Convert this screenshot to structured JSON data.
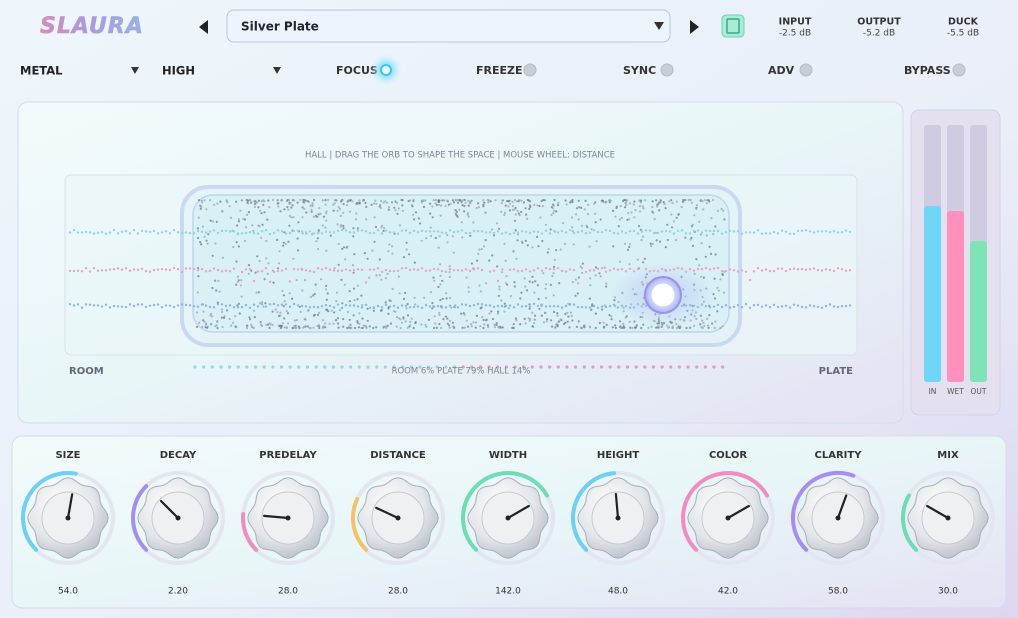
{
  "header": {
    "logo": "SLAURA",
    "preset": "Silver Plate",
    "readouts": [
      {
        "label": "INPUT",
        "value": "-2.5 dB"
      },
      {
        "label": "OUTPUT",
        "value": "-5.2 dB"
      },
      {
        "label": "DUCK",
        "value": "-5.5 dB"
      }
    ]
  },
  "controls": {
    "material": "METAL",
    "quality": "HIGH",
    "toggles": [
      "FOCUS",
      "FREEZE",
      "SYNC",
      "ADV",
      "BYPASS"
    ]
  },
  "display": {
    "hint": "HALL  |  DRAG THE ORB TO SHAPE THE SPACE  |  MOUSE WHEEL: DISTANCE",
    "left": "ROOM",
    "right": "PLATE",
    "mix": "ROOM 6%   PLATE 79%   HALL 14%"
  },
  "meters": [
    "IN",
    "WET",
    "OUT"
  ],
  "knobs": [
    {
      "label": "SIZE",
      "value": "54.0"
    },
    {
      "label": "DECAY",
      "value": "2.20"
    },
    {
      "label": "PREDELAY",
      "value": "28.0"
    },
    {
      "label": "DISTANCE",
      "value": "28.0"
    },
    {
      "label": "WIDTH",
      "value": "142.0"
    },
    {
      "label": "HEIGHT",
      "value": "48.0"
    },
    {
      "label": "COLOR",
      "value": "42.0"
    },
    {
      "label": "CLARITY",
      "value": "58.0"
    },
    {
      "label": "MIX",
      "value": "30.0"
    }
  ]
}
